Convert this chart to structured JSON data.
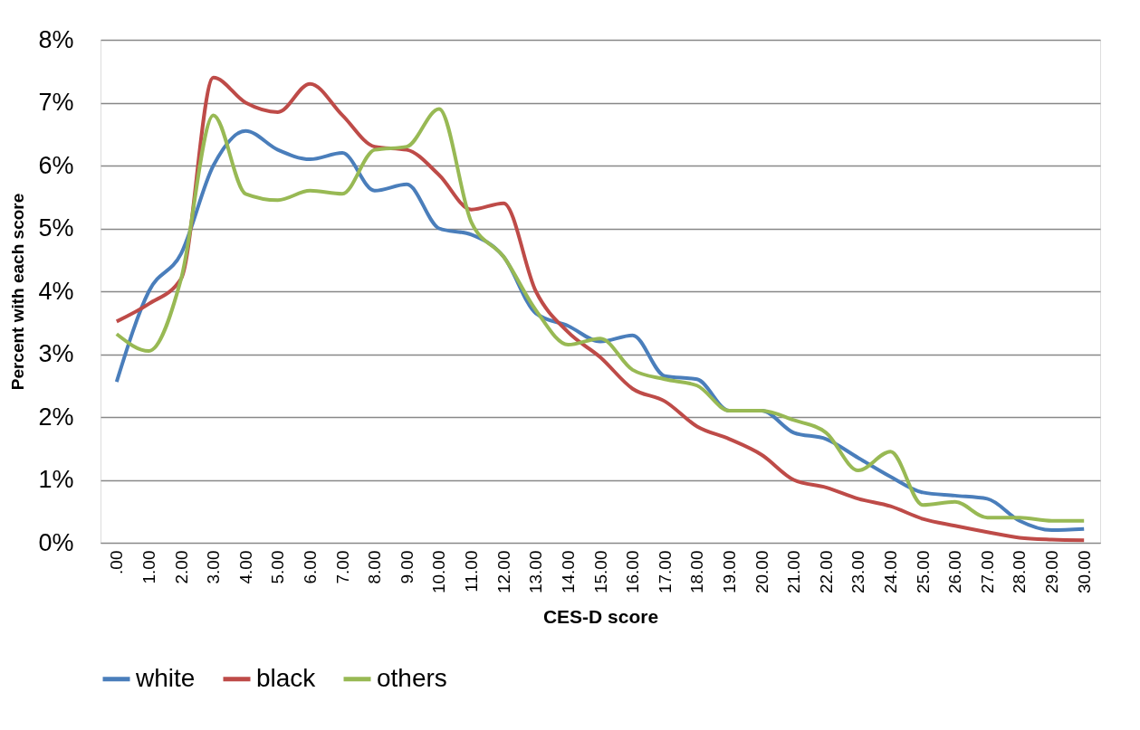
{
  "chart_data": {
    "type": "line",
    "xlabel": "CES-D score",
    "ylabel": "Percent with each score",
    "categories": [
      ".00",
      "1.00",
      "2.00",
      "3.00",
      "4.00",
      "5.00",
      "6.00",
      "7.00",
      "8.00",
      "9.00",
      "10.00",
      "11.00",
      "12.00",
      "13.00",
      "14.00",
      "15.00",
      "16.00",
      "17.00",
      "18.00",
      "19.00",
      "20.00",
      "21.00",
      "22.00",
      "23.00",
      "24.00",
      "25.00",
      "26.00",
      "27.00",
      "28.00",
      "29.00",
      "30.00"
    ],
    "series": [
      {
        "name": "white",
        "color": "#4a7ebb",
        "values": [
          2.56,
          4.0,
          4.6,
          6.0,
          6.55,
          6.25,
          6.1,
          6.2,
          5.6,
          5.7,
          5.0,
          4.9,
          4.55,
          3.65,
          3.45,
          3.2,
          3.3,
          2.65,
          2.6,
          2.1,
          2.1,
          1.75,
          1.65,
          1.35,
          1.05,
          0.8,
          0.75,
          0.7,
          0.35,
          0.2,
          0.22
        ]
      },
      {
        "name": "black",
        "color": "#be4b48",
        "values": [
          3.52,
          3.8,
          4.2,
          7.4,
          7.0,
          6.85,
          7.3,
          6.8,
          6.3,
          6.25,
          5.85,
          5.3,
          5.4,
          4.0,
          3.35,
          2.95,
          2.45,
          2.25,
          1.85,
          1.65,
          1.4,
          1.0,
          0.88,
          0.7,
          0.58,
          0.38,
          0.27,
          0.17,
          0.08,
          0.05,
          0.04
        ]
      },
      {
        "name": "others",
        "color": "#98b954",
        "values": [
          3.32,
          3.05,
          4.2,
          6.8,
          5.55,
          5.45,
          5.6,
          5.55,
          6.25,
          6.3,
          6.9,
          5.1,
          4.55,
          3.7,
          3.15,
          3.25,
          2.75,
          2.6,
          2.5,
          2.1,
          2.1,
          1.95,
          1.75,
          1.15,
          1.45,
          0.6,
          0.65,
          0.4,
          0.4,
          0.35,
          0.35
        ]
      }
    ],
    "ylim": [
      0,
      8
    ],
    "yticks": [
      {
        "value": 0,
        "label": "0%"
      },
      {
        "value": 1,
        "label": "1%"
      },
      {
        "value": 2,
        "label": "2%"
      },
      {
        "value": 3,
        "label": "3%"
      },
      {
        "value": 4,
        "label": "4%"
      },
      {
        "value": 5,
        "label": "5%"
      },
      {
        "value": 6,
        "label": "6%"
      },
      {
        "value": 7,
        "label": "7%"
      },
      {
        "value": 8,
        "label": "8%"
      }
    ],
    "grid": "y",
    "legend": "bottom",
    "marker": "none",
    "line_style": "solid"
  }
}
